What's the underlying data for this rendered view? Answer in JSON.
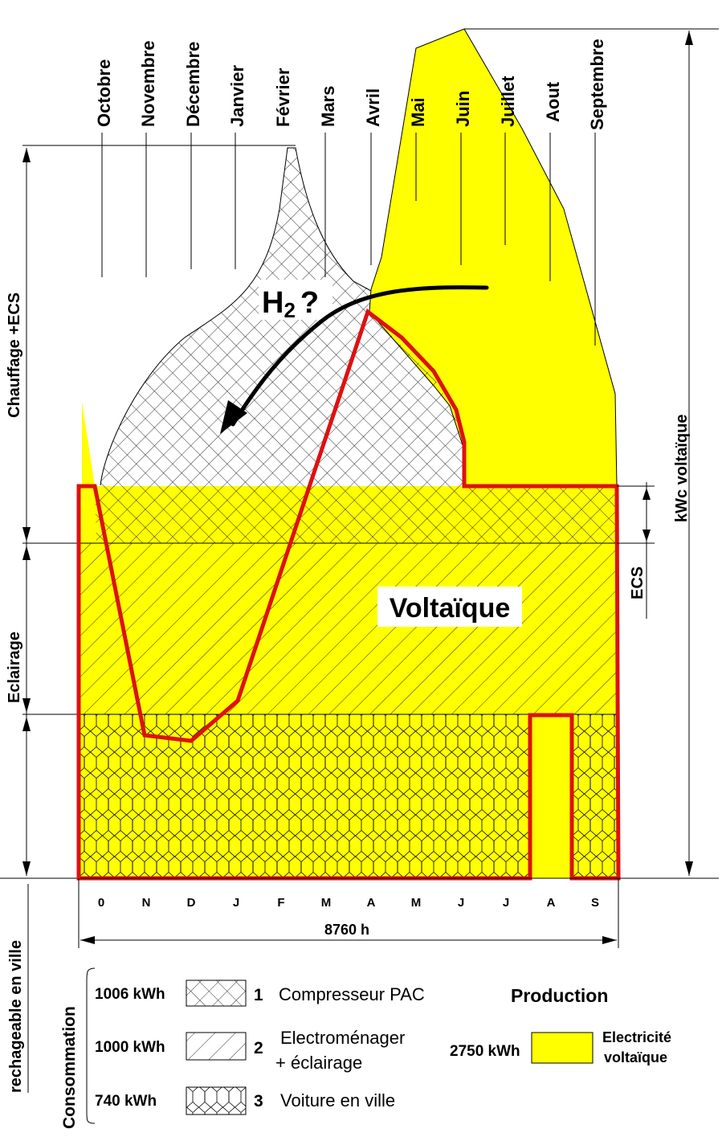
{
  "months_top": [
    "Octobre",
    "Novembre",
    "Décembre",
    "Janvier",
    "Février",
    "Mars",
    "Avril",
    "Mai",
    "Juin",
    "Juillet",
    "Aout",
    "Septembre"
  ],
  "months_bottom": [
    "0",
    "N",
    "D",
    "J",
    "F",
    "M",
    "A",
    "M",
    "J",
    "J",
    "A",
    "S"
  ],
  "left_dimensions": {
    "heating": "Chauffage +ECS",
    "lighting": "Eclairage",
    "car": "rechageable en ville"
  },
  "right_dimensions": {
    "kwc": "kWc  voltaïque",
    "ecs": "ECS"
  },
  "annotations": {
    "h2_main": "H",
    "h2_sub": "2",
    "h2_q": "?",
    "voltaique": "Voltaïque",
    "hours": "8760 h"
  },
  "legend": {
    "title": "Consommation",
    "items": [
      {
        "kwh": "1006 kWh",
        "num": "1",
        "label": "Compresseur PAC",
        "pattern": "crosshatch"
      },
      {
        "kwh": "1000 kWh",
        "num": "2",
        "label": "Electroménager",
        "label2": "+ éclairage",
        "pattern": "diagonal"
      },
      {
        "kwh": "740 kWh",
        "num": "3",
        "label": "Voiture en ville",
        "pattern": "hexagon"
      }
    ],
    "production_title": "Production",
    "production_kwh": "2750 kWh",
    "production_label": "Electricité",
    "production_label2": "voltaïque"
  },
  "colors": {
    "solar_fill": "#ffff00",
    "outline": "#dd1111",
    "ink": "#000000"
  }
}
